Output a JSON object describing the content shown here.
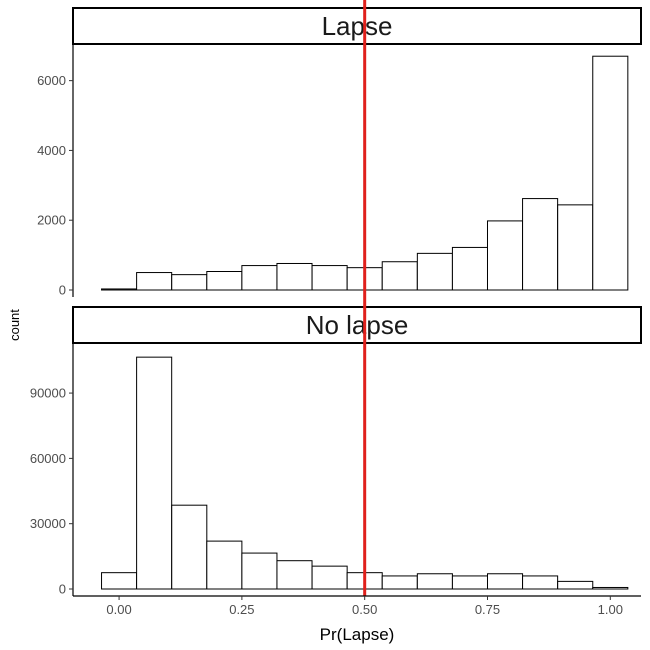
{
  "chart_data": {
    "type": "bar",
    "subtype": "faceted-histogram",
    "xlabel": "Pr(Lapse)",
    "ylabel": "count",
    "xlim": [
      -0.0938,
      1.0625
    ],
    "x_ticks": [
      "0.00",
      "0.25",
      "0.50",
      "0.75",
      "1.00"
    ],
    "x_tick_values": [
      0,
      0.25,
      0.5,
      0.75,
      1.0
    ],
    "bin_centers": [
      0.0,
      0.0714,
      0.1429,
      0.2143,
      0.2857,
      0.3571,
      0.4286,
      0.5,
      0.5714,
      0.6429,
      0.7143,
      0.7857,
      0.8571,
      0.9286,
      1.0
    ],
    "bin_width": 0.0714,
    "reference_line": {
      "x": 0.5,
      "color": "#e0201c"
    },
    "bar_fill": "#ffffff",
    "bar_stroke": "#000000",
    "grid": false,
    "panels": [
      {
        "strip_label": "Lapse",
        "y_ticks": [
          "0",
          "2000",
          "4000",
          "6000"
        ],
        "y_tick_values": [
          0,
          2000,
          4000,
          6000
        ],
        "ylim": [
          0,
          7050
        ],
        "values": [
          30,
          500,
          440,
          530,
          700,
          760,
          700,
          640,
          810,
          1050,
          1220,
          1980,
          2620,
          2440,
          6700
        ]
      },
      {
        "strip_label": "No lapse",
        "y_ticks": [
          "0",
          "30000",
          "60000",
          "90000"
        ],
        "y_tick_values": [
          0,
          30000,
          60000,
          90000
        ],
        "ylim": [
          0,
          113000
        ],
        "values": [
          7500,
          106500,
          38500,
          22000,
          16500,
          13000,
          10500,
          7500,
          6000,
          7000,
          6000,
          7000,
          6000,
          3500,
          700
        ]
      }
    ]
  }
}
